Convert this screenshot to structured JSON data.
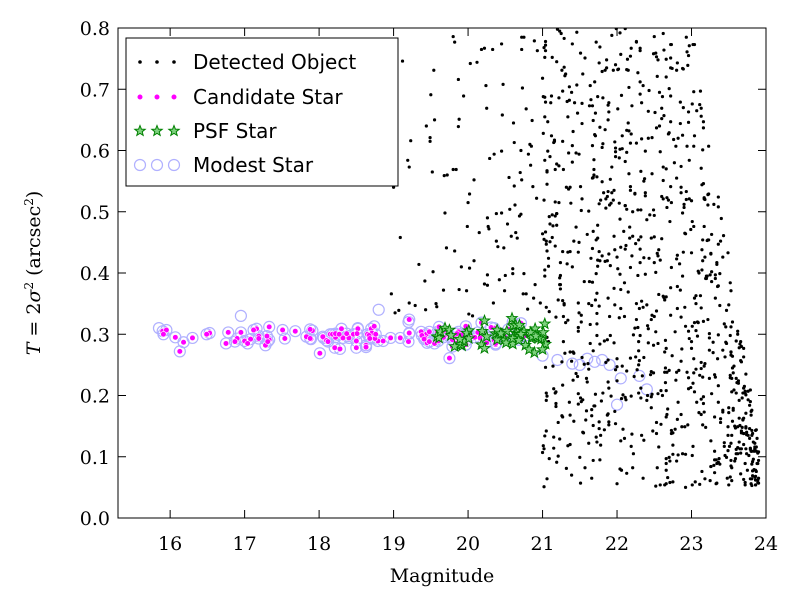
{
  "chart_data": {
    "type": "scatter",
    "xlabel": "Magnitude",
    "ylabel": "T = 2σ² (arcsec²)",
    "xlim": [
      15.3,
      24.0
    ],
    "ylim": [
      0.0,
      0.8
    ],
    "xticks": [
      16,
      17,
      18,
      19,
      20,
      21,
      22,
      23,
      24
    ],
    "yticks": [
      0.0,
      0.1,
      0.2,
      0.3,
      0.4,
      0.5,
      0.6,
      0.7,
      0.8
    ],
    "legend_position": "top-left",
    "series": [
      {
        "name": "Detected Object",
        "color": "#000000",
        "marker": "dot",
        "points": []
      },
      {
        "name": "Candidate Star",
        "color": "#ff00ff",
        "marker": "circle",
        "points": []
      },
      {
        "name": "PSF Star",
        "color": "#008000",
        "marker": "star",
        "points": []
      },
      {
        "name": "Modest Star",
        "color": "#b0b0ff",
        "marker": "open-circle",
        "points": []
      }
    ]
  }
}
